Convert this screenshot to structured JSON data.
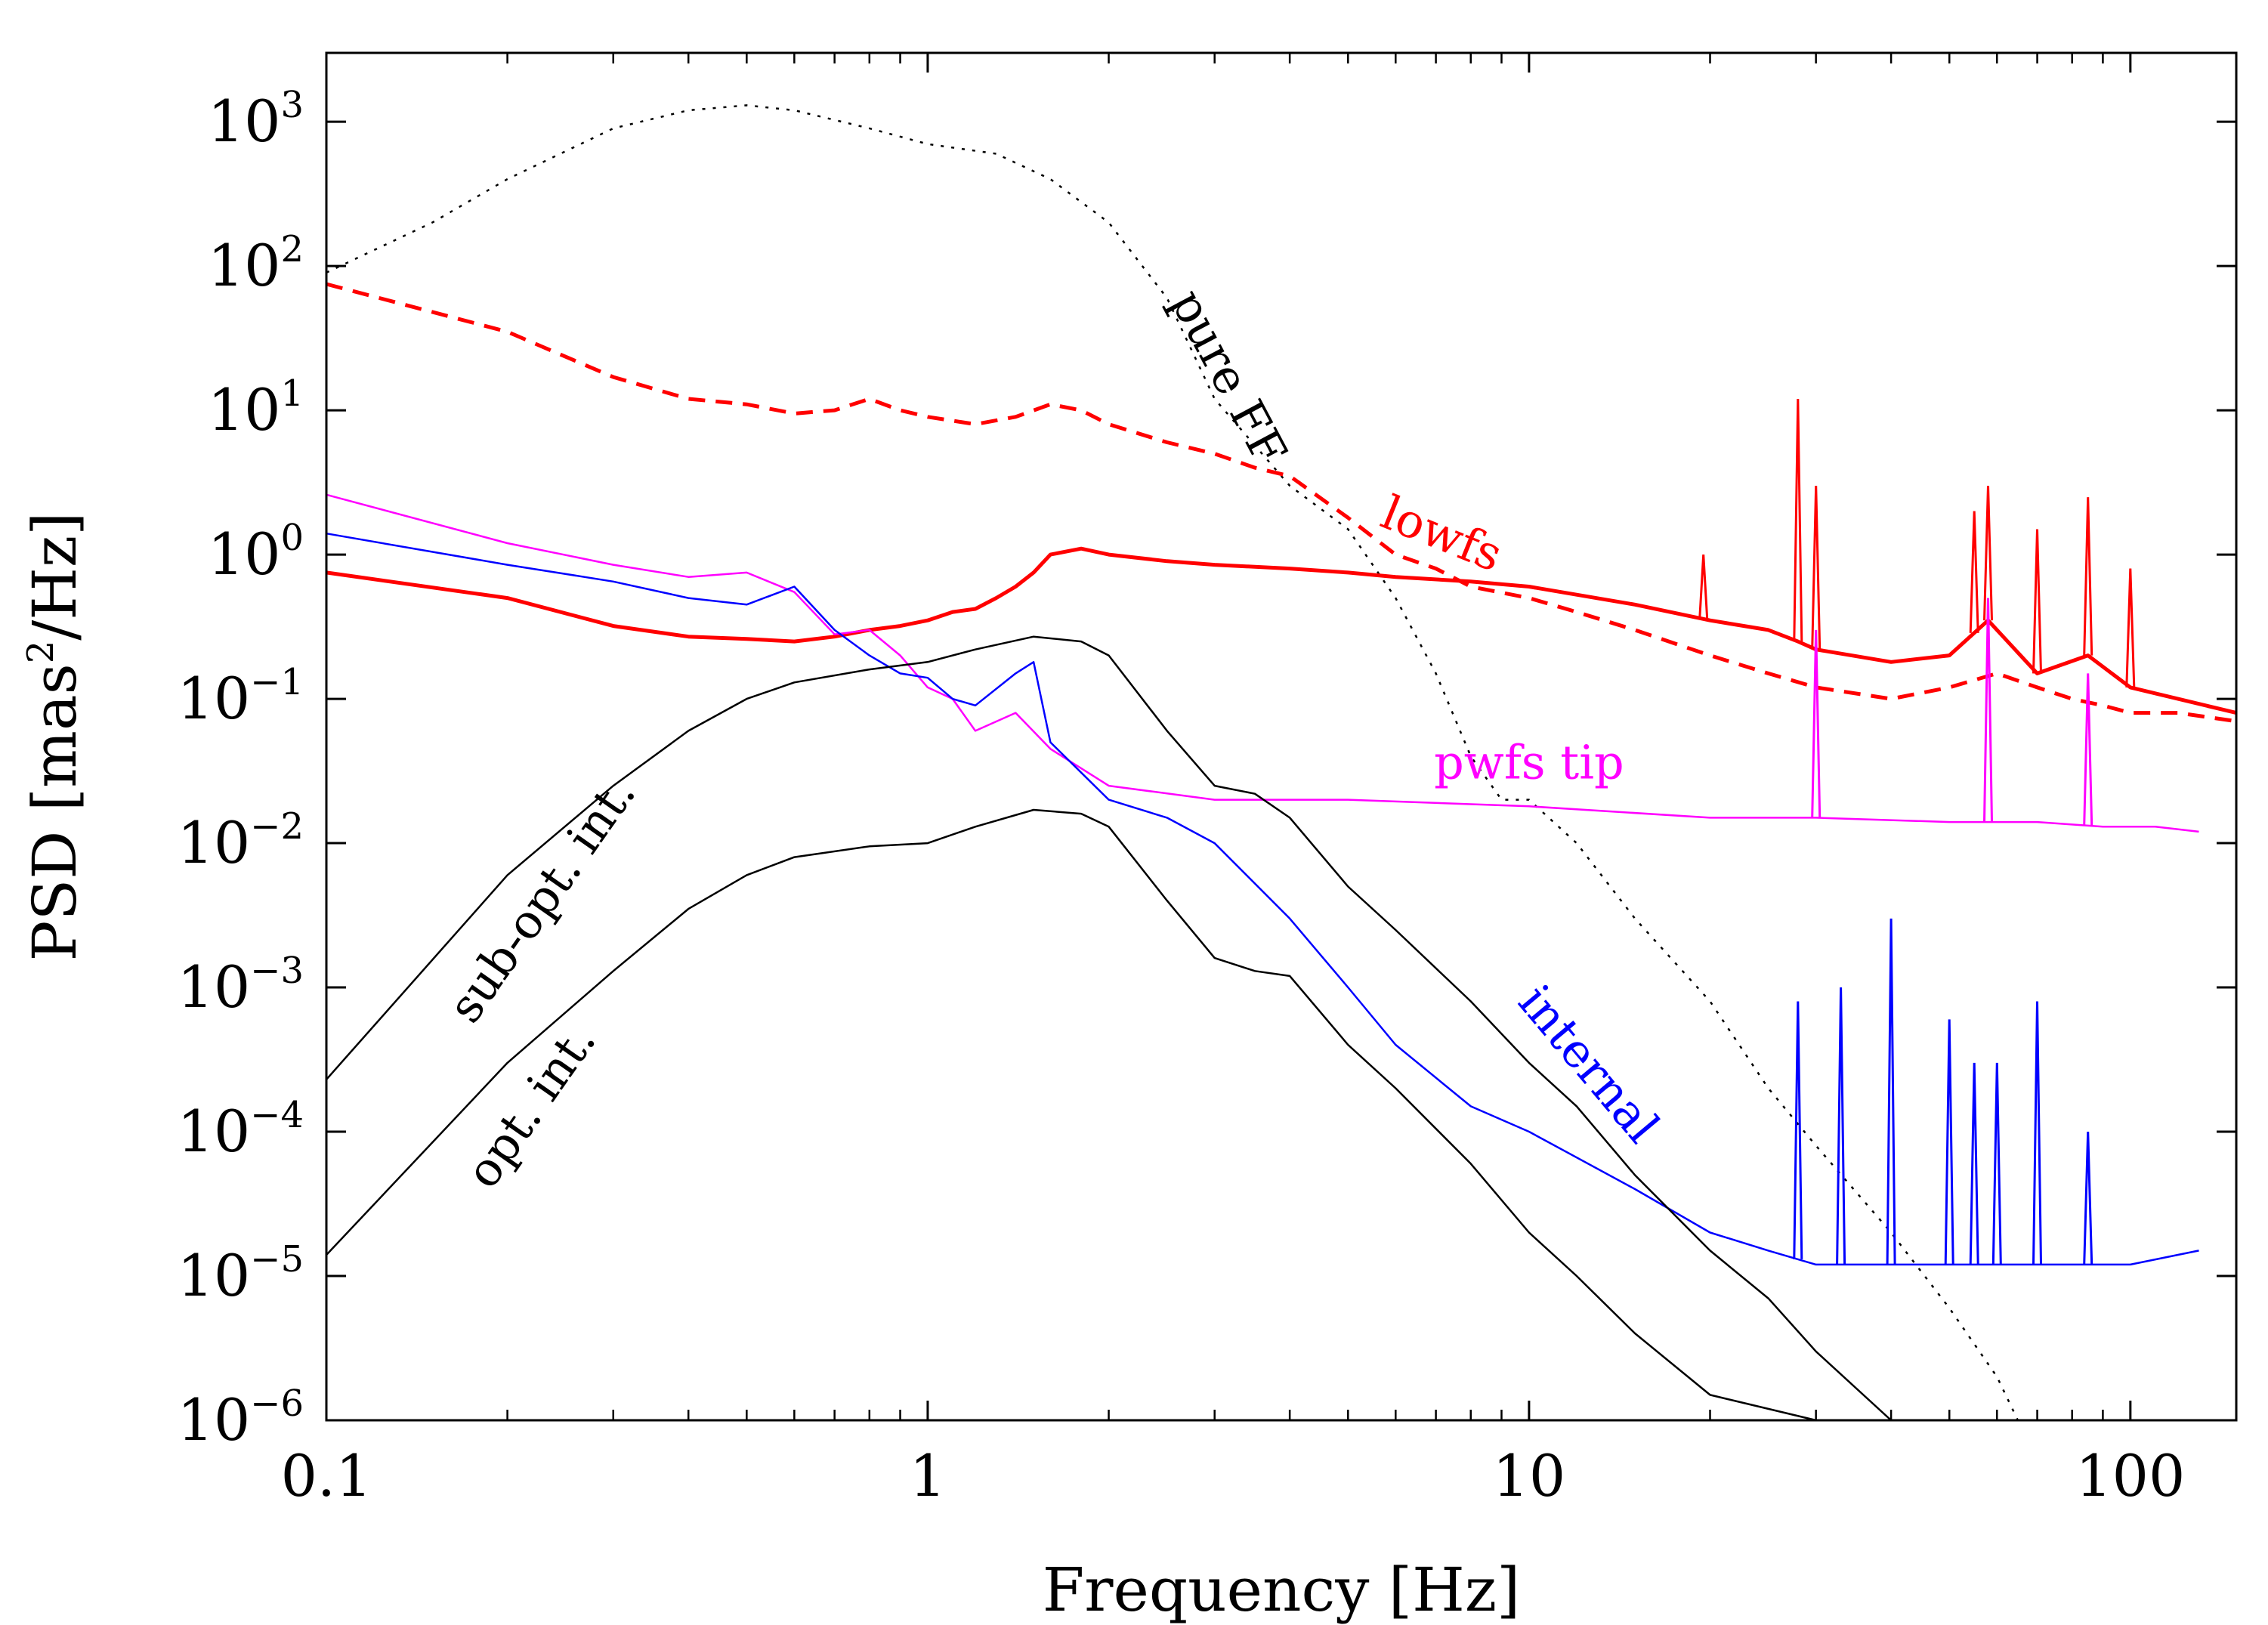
{
  "chart_data": {
    "type": "line",
    "title": "",
    "xlabel": "Frequency [Hz]",
    "ylabel": "PSD [mas²/Hz]",
    "ylabel_parts": {
      "prefix": "PSD [mas",
      "exponent": "2",
      "suffix": "/Hz]"
    },
    "xscale": "log",
    "yscale": "log",
    "xlim": [
      0.1,
      150
    ],
    "ylim": [
      1e-06,
      3000
    ],
    "grid": false,
    "x_ticks": [
      {
        "value": 0.1,
        "label": "0.1"
      },
      {
        "value": 1,
        "label": "1"
      },
      {
        "value": 10,
        "label": "10"
      },
      {
        "value": 100,
        "label": "100"
      }
    ],
    "y_ticks": [
      {
        "value": 1000.0,
        "base": "10",
        "exp": "3"
      },
      {
        "value": 100.0,
        "base": "10",
        "exp": "2"
      },
      {
        "value": 10.0,
        "base": "10",
        "exp": "1"
      },
      {
        "value": 1.0,
        "base": "10",
        "exp": "0"
      },
      {
        "value": 0.1,
        "base": "10",
        "exp": "−1"
      },
      {
        "value": 0.01,
        "base": "10",
        "exp": "−2"
      },
      {
        "value": 0.001,
        "base": "10",
        "exp": "−3"
      },
      {
        "value": 0.0001,
        "base": "10",
        "exp": "−4"
      },
      {
        "value": 1e-05,
        "base": "10",
        "exp": "−5"
      },
      {
        "value": 1e-06,
        "base": "10",
        "exp": "−6"
      }
    ],
    "series": [
      {
        "name": "pure FF",
        "color": "#000000",
        "style": "dotted",
        "width": 2.5,
        "x": [
          0.1,
          0.15,
          0.2,
          0.3,
          0.4,
          0.5,
          0.6,
          0.8,
          1.0,
          1.3,
          1.6,
          2.0,
          2.5,
          3.0,
          4.0,
          5.0,
          6.0,
          7.0,
          8.0,
          9.0,
          10,
          12,
          15,
          20,
          25,
          30,
          40,
          50,
          60,
          65
        ],
        "values": [
          90,
          200,
          400,
          900,
          1200,
          1300,
          1200,
          900,
          700,
          600,
          400,
          200,
          60,
          12,
          3,
          1.5,
          0.5,
          0.15,
          0.04,
          0.02,
          0.02,
          0.01,
          0.003,
          0.0008,
          0.0002,
          8e-05,
          2e-05,
          6e-06,
          2e-06,
          1e-06
        ]
      },
      {
        "name": "lowfs",
        "color": "#ff0000",
        "style": "dashed",
        "width": 5,
        "x": [
          0.1,
          0.2,
          0.3,
          0.4,
          0.5,
          0.6,
          0.7,
          0.8,
          0.9,
          1.0,
          1.2,
          1.4,
          1.6,
          1.8,
          2.0,
          2.5,
          3.0,
          3.5,
          4.0,
          5.0,
          6.0,
          7.0,
          8.0,
          10,
          12,
          15,
          20,
          25,
          30,
          40,
          50,
          60,
          70,
          80,
          90,
          100,
          120,
          150
        ],
        "values": [
          75,
          35,
          17,
          12,
          11,
          9.5,
          10,
          12,
          10,
          9,
          8,
          9,
          11,
          10,
          8,
          6,
          5,
          4,
          3.5,
          1.8,
          1.0,
          0.8,
          0.6,
          0.5,
          0.4,
          0.3,
          0.2,
          0.15,
          0.12,
          0.1,
          0.12,
          0.15,
          0.12,
          0.1,
          0.09,
          0.08,
          0.08,
          0.07
        ]
      },
      {
        "name": "lowfs",
        "color": "#ff0000",
        "style": "solid",
        "width": 5,
        "x": [
          0.1,
          0.2,
          0.3,
          0.4,
          0.5,
          0.6,
          0.7,
          0.8,
          0.9,
          1.0,
          1.1,
          1.2,
          1.3,
          1.4,
          1.5,
          1.6,
          1.8,
          2.0,
          2.5,
          3.0,
          4.0,
          5.0,
          6.0,
          8.0,
          10,
          15,
          20,
          25,
          28,
          30,
          40,
          50,
          58,
          70,
          85,
          100,
          120,
          150
        ],
        "values": [
          0.75,
          0.5,
          0.32,
          0.27,
          0.26,
          0.25,
          0.27,
          0.3,
          0.32,
          0.35,
          0.4,
          0.42,
          0.5,
          0.6,
          0.75,
          1.0,
          1.1,
          1.0,
          0.9,
          0.85,
          0.8,
          0.75,
          0.7,
          0.65,
          0.6,
          0.45,
          0.35,
          0.3,
          0.25,
          0.22,
          0.18,
          0.2,
          0.35,
          0.15,
          0.2,
          0.12,
          0.1,
          0.08
        ]
      },
      {
        "name": "pwfs tip",
        "color": "#ff00ff",
        "style": "solid",
        "width": 2.5,
        "x": [
          0.1,
          0.2,
          0.3,
          0.4,
          0.5,
          0.6,
          0.7,
          0.8,
          0.9,
          1.0,
          1.1,
          1.2,
          1.4,
          1.6,
          2.0,
          3.0,
          5.0,
          10,
          20,
          30,
          50,
          70,
          90,
          110,
          130
        ],
        "values": [
          2.6,
          1.2,
          0.85,
          0.7,
          0.75,
          0.55,
          0.28,
          0.3,
          0.2,
          0.12,
          0.1,
          0.06,
          0.08,
          0.045,
          0.025,
          0.02,
          0.02,
          0.018,
          0.015,
          0.015,
          0.014,
          0.014,
          0.013,
          0.013,
          0.012
        ]
      },
      {
        "name": "internal",
        "color": "#0000ff",
        "style": "solid",
        "width": 2.5,
        "x": [
          0.1,
          0.2,
          0.3,
          0.4,
          0.5,
          0.6,
          0.7,
          0.8,
          0.9,
          1.0,
          1.1,
          1.2,
          1.4,
          1.5,
          1.6,
          2.0,
          2.5,
          3.0,
          4.0,
          5.0,
          6.0,
          8.0,
          10,
          15,
          20,
          25,
          30,
          40,
          50,
          60,
          80,
          100,
          130
        ],
        "values": [
          1.4,
          0.85,
          0.65,
          0.5,
          0.45,
          0.6,
          0.3,
          0.2,
          0.15,
          0.14,
          0.1,
          0.09,
          0.15,
          0.18,
          0.05,
          0.02,
          0.015,
          0.01,
          0.003,
          0.001,
          0.0004,
          0.00015,
          0.0001,
          4e-05,
          2e-05,
          1.5e-05,
          1.2e-05,
          1.2e-05,
          1.2e-05,
          1.2e-05,
          1.2e-05,
          1.2e-05,
          1.5e-05
        ]
      },
      {
        "name": "sub-opt. int.",
        "color": "#000000",
        "style": "solid",
        "width": 2.5,
        "x": [
          0.1,
          0.2,
          0.3,
          0.4,
          0.5,
          0.6,
          0.8,
          1.0,
          1.2,
          1.5,
          1.8,
          2.0,
          2.5,
          3.0,
          3.5,
          4.0,
          5.0,
          6.0,
          8.0,
          10,
          12,
          15,
          20,
          25,
          30,
          40
        ],
        "values": [
          0.00023,
          0.006,
          0.025,
          0.06,
          0.1,
          0.13,
          0.16,
          0.18,
          0.22,
          0.27,
          0.25,
          0.2,
          0.06,
          0.025,
          0.022,
          0.015,
          0.005,
          0.0025,
          0.0008,
          0.0003,
          0.00015,
          5e-05,
          1.5e-05,
          7e-06,
          3e-06,
          1e-06
        ]
      },
      {
        "name": "opt. int.",
        "color": "#000000",
        "style": "solid",
        "width": 2.5,
        "x": [
          0.1,
          0.2,
          0.3,
          0.4,
          0.5,
          0.6,
          0.8,
          1.0,
          1.2,
          1.5,
          1.8,
          2.0,
          2.5,
          3.0,
          3.5,
          4.0,
          5.0,
          6.0,
          8.0,
          10,
          12,
          15,
          20,
          25,
          30,
          34
        ],
        "values": [
          1.4e-05,
          0.0003,
          0.0013,
          0.0035,
          0.006,
          0.008,
          0.0095,
          0.01,
          0.013,
          0.017,
          0.016,
          0.013,
          0.004,
          0.0016,
          0.0013,
          0.0012,
          0.0004,
          0.0002,
          6e-05,
          2e-05,
          1e-05,
          4e-06,
          1.5e-06,
          1.2e-06,
          1e-06,
          1e-06
        ]
      }
    ],
    "peaks": [
      {
        "series": "lowfs",
        "color": "#ff0000",
        "x": [
          19.5,
          28,
          30,
          55,
          58,
          70,
          85,
          100
        ],
        "values": [
          1.0,
          12,
          3.0,
          2.0,
          3.0,
          1.5,
          2.5,
          0.8
        ]
      },
      {
        "series": "pwfs tip",
        "color": "#ff00ff",
        "x": [
          30,
          58,
          85
        ],
        "values": [
          0.3,
          0.5,
          0.15
        ]
      },
      {
        "series": "internal",
        "color": "#0000ff",
        "x": [
          28,
          33,
          40,
          50,
          55,
          60,
          70,
          85
        ],
        "values": [
          0.0008,
          0.001,
          0.003,
          0.0006,
          0.0003,
          0.0003,
          0.0008,
          0.0001
        ]
      }
    ],
    "annotations": [
      {
        "text": "pure FF",
        "color": "#000000",
        "x": 3.0,
        "y": 15,
        "angle": 62
      },
      {
        "text": "lowfs",
        "color": "#ff0000",
        "x": 7.0,
        "y": 1.1,
        "angle": 22
      },
      {
        "text": "pwfs tip",
        "color": "#ff00ff",
        "x": 10,
        "y": 0.028,
        "angle": 0
      },
      {
        "text": "internal",
        "color": "#0000ff",
        "x": 12,
        "y": 0.00025,
        "angle": 50
      },
      {
        "text": "sub-opt. int.",
        "color": "#000000",
        "x": 0.24,
        "y": 0.0035,
        "angle": -55
      },
      {
        "text": "opt. int.",
        "color": "#000000",
        "x": 0.23,
        "y": 0.00013,
        "angle": -55
      }
    ]
  }
}
